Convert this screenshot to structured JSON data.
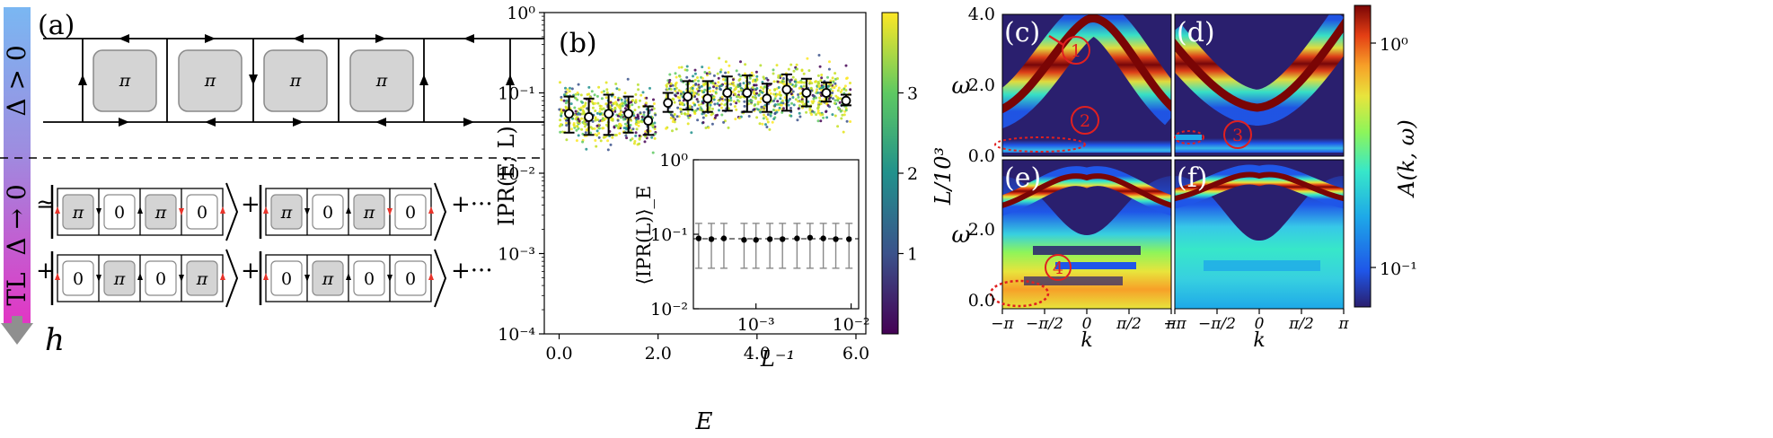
{
  "panels": {
    "a": {
      "label": "(a)",
      "side_top": "Δ > 0",
      "side_mid": "Δ → 0",
      "side_bottom": "TL",
      "h_label": "h",
      "plaquettes_top": [
        "π",
        "π",
        "π",
        "π"
      ],
      "approx": "≃",
      "plus": "+",
      "dots": "+···",
      "state_rows": [
        [
          [
            "π",
            "0",
            "π",
            "0"
          ],
          [
            "π",
            "0",
            "π",
            "0"
          ]
        ],
        [
          [
            "0",
            "π",
            "0",
            "π"
          ],
          [
            "0",
            "π",
            "0",
            "0"
          ]
        ]
      ],
      "colors": {
        "gray": "#d4d4d4",
        "grad_top": "#7ab7f2",
        "grad_bottom": "#e236c4",
        "arrow_red": "#e8342b"
      }
    },
    "b": {
      "label": "(b)",
      "inset_ylabel": "⟨IPR(L)⟩_E",
      "inset_xlabel": "L⁻¹",
      "colorbar_label": "L/10³"
    },
    "cf": {
      "labels": [
        "(c)",
        "(d)",
        "(e)",
        "(f)"
      ],
      "ylabel": "ω",
      "xlabel": "k",
      "xticks": [
        "−π",
        "−π/2",
        "0",
        "π/2",
        "π"
      ],
      "yticks_top": [
        "4.0",
        "2.0",
        "0.0"
      ],
      "yticks_bottom": [
        "2.0",
        "0.0"
      ],
      "colorbar_label": "A(k, ω)",
      "colorbar_ticks": [
        "10⁰",
        "10⁻¹"
      ],
      "markers": [
        "1",
        "2",
        "3",
        "4"
      ]
    }
  },
  "chart_data": {
    "type": "scatter",
    "xlabel": "E",
    "ylabel": "IPR(E; L)",
    "xlim": [
      -0.3,
      6.2
    ],
    "ylim": [
      0.0001,
      1
    ],
    "yscale": "log",
    "xticks": [
      "0.0",
      "2.0",
      "4.0",
      "6.0"
    ],
    "yticks": [
      "10⁰",
      "10⁻¹",
      "10⁻²",
      "10⁻³",
      "10⁻⁴"
    ],
    "colorbar": {
      "range": [
        0,
        4
      ],
      "ticks": [
        "1",
        "2",
        "3"
      ]
    },
    "binned_means": {
      "x": [
        0.2,
        0.6,
        1.0,
        1.4,
        1.8,
        2.2,
        2.6,
        3.0,
        3.4,
        3.8,
        4.2,
        4.6,
        5.0,
        5.4,
        5.8
      ],
      "y": [
        0.055,
        0.05,
        0.055,
        0.055,
        0.045,
        0.075,
        0.09,
        0.085,
        0.1,
        0.1,
        0.085,
        0.11,
        0.1,
        0.1,
        0.08
      ],
      "ylow": [
        0.032,
        0.03,
        0.03,
        0.032,
        0.03,
        0.058,
        0.062,
        0.058,
        0.06,
        0.058,
        0.058,
        0.06,
        0.068,
        0.078,
        0.07
      ],
      "yhigh": [
        0.09,
        0.085,
        0.095,
        0.09,
        0.068,
        0.1,
        0.14,
        0.14,
        0.16,
        0.165,
        0.13,
        0.17,
        0.15,
        0.135,
        0.095
      ]
    },
    "inset": {
      "type": "scatter",
      "xscale": "log",
      "yscale": "log",
      "xlim": [
        0.00022,
        0.012
      ],
      "ylim": [
        0.01,
        1
      ],
      "xticks": [
        "10⁻³",
        "10⁻²"
      ],
      "yticks": [
        "10⁰",
        "10⁻¹",
        "10⁻²"
      ],
      "x": [
        0.00025,
        0.00034,
        0.00046,
        0.00075,
        0.001,
        0.0014,
        0.0019,
        0.0027,
        0.0037,
        0.0051,
        0.0069,
        0.0095
      ],
      "y": [
        0.088,
        0.086,
        0.088,
        0.084,
        0.084,
        0.086,
        0.086,
        0.088,
        0.09,
        0.088,
        0.086,
        0.086
      ],
      "ylow": [
        0.035,
        0.035,
        0.035,
        0.035,
        0.035,
        0.035,
        0.035,
        0.035,
        0.035,
        0.035,
        0.035,
        0.035
      ],
      "yhigh": [
        0.14,
        0.14,
        0.14,
        0.14,
        0.14,
        0.14,
        0.14,
        0.14,
        0.14,
        0.14,
        0.14,
        0.14
      ],
      "fit_y": 0.087
    }
  }
}
